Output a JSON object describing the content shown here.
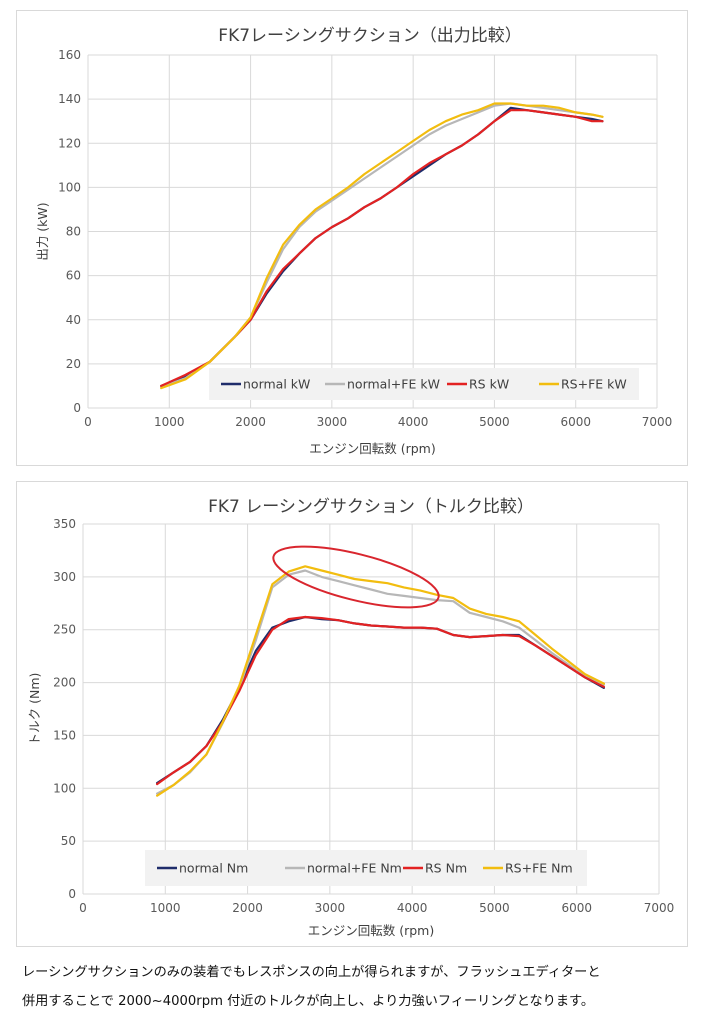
{
  "chart_data": [
    {
      "type": "line",
      "title": "FK7レーシングサクション（出力比較）",
      "xlabel": "エンジン回転数 (rpm)",
      "ylabel": "出力 (kW)",
      "xlim": [
        0,
        7000
      ],
      "ylim": [
        0,
        160
      ],
      "xticks": [
        0,
        1000,
        2000,
        3000,
        4000,
        5000,
        6000,
        7000
      ],
      "yticks": [
        0,
        20,
        40,
        60,
        80,
        100,
        120,
        140,
        160
      ],
      "grid": true,
      "legend_position": "bottom-right",
      "series": [
        {
          "name": "normal kW",
          "color": "#1f2d6b",
          "x": [
            900,
            1200,
            1500,
            1800,
            2000,
            2200,
            2400,
            2600,
            2800,
            3000,
            3200,
            3400,
            3600,
            3800,
            4000,
            4200,
            4400,
            4600,
            4800,
            5000,
            5200,
            5400,
            5600,
            5800,
            6000,
            6200,
            6330
          ],
          "y": [
            10,
            14,
            21,
            32,
            40,
            52,
            62,
            70,
            77,
            82,
            86,
            91,
            95,
            100,
            105,
            110,
            115,
            119,
            124,
            130,
            136,
            135,
            134,
            133,
            132,
            131,
            130
          ]
        },
        {
          "name": "normal+FE kW",
          "color": "#b7b7b7",
          "x": [
            900,
            1200,
            1500,
            1800,
            2000,
            2200,
            2400,
            2600,
            2800,
            3000,
            3200,
            3400,
            3600,
            3800,
            4000,
            4200,
            4400,
            4600,
            4800,
            5000,
            5200,
            5400,
            5600,
            5800,
            6000,
            6200,
            6330
          ],
          "y": [
            9.5,
            13.5,
            21,
            32,
            41,
            57,
            72,
            82,
            89,
            94,
            99,
            104,
            109,
            114,
            119,
            124,
            128,
            131,
            134,
            137,
            138,
            137,
            136,
            135,
            134,
            133,
            132
          ]
        },
        {
          "name": "RS kW",
          "color": "#e32222",
          "x": [
            900,
            1200,
            1500,
            1800,
            2000,
            2200,
            2400,
            2600,
            2800,
            3000,
            3200,
            3400,
            3600,
            3800,
            4000,
            4200,
            4400,
            4600,
            4800,
            5000,
            5200,
            5400,
            5600,
            5800,
            6000,
            6200,
            6330
          ],
          "y": [
            10,
            15,
            21,
            32,
            40,
            53,
            63,
            70,
            77,
            82,
            86,
            91,
            95,
            100,
            106,
            111,
            115,
            119,
            124,
            130,
            135,
            135,
            134,
            133,
            132,
            130,
            130
          ]
        },
        {
          "name": "RS+FE kW",
          "color": "#f2bd0f",
          "x": [
            900,
            1200,
            1500,
            1800,
            2000,
            2200,
            2400,
            2600,
            2800,
            3000,
            3200,
            3400,
            3600,
            3800,
            4000,
            4200,
            4400,
            4600,
            4800,
            5000,
            5200,
            5400,
            5600,
            5800,
            6000,
            6200,
            6330
          ],
          "y": [
            9,
            13,
            21,
            32,
            41,
            59,
            74,
            83,
            90,
            95,
            100,
            106,
            111,
            116,
            121,
            126,
            130,
            133,
            135,
            138,
            138,
            137,
            137,
            136,
            134,
            133,
            132
          ]
        }
      ]
    },
    {
      "type": "line",
      "title": "FK7 レーシングサクション（トルク比較）",
      "xlabel": "エンジン回転数 (rpm)",
      "ylabel": "トルク (Nm)",
      "xlim": [
        0,
        7000
      ],
      "ylim": [
        0,
        350
      ],
      "xticks": [
        0,
        1000,
        2000,
        3000,
        4000,
        5000,
        6000,
        7000
      ],
      "yticks": [
        0,
        50,
        100,
        150,
        200,
        250,
        300,
        350
      ],
      "grid": true,
      "legend_position": "bottom",
      "annotation": "ellipse highlighting 2000~4000rpm",
      "series": [
        {
          "name": "normal Nm",
          "color": "#1f2d6b",
          "x": [
            900,
            1100,
            1300,
            1500,
            1700,
            1900,
            2100,
            2300,
            2500,
            2700,
            2900,
            3100,
            3300,
            3500,
            3700,
            3900,
            4100,
            4300,
            4500,
            4700,
            4900,
            5100,
            5300,
            5500,
            5700,
            5900,
            6100,
            6330
          ],
          "y": [
            105,
            115,
            125,
            140,
            165,
            195,
            230,
            252,
            258,
            262,
            260,
            259,
            256,
            254,
            253,
            252,
            252,
            251,
            245,
            243,
            244,
            245,
            245,
            235,
            225,
            215,
            205,
            195
          ]
        },
        {
          "name": "normal+FE Nm",
          "color": "#b7b7b7",
          "x": [
            900,
            1100,
            1300,
            1500,
            1700,
            1900,
            2100,
            2300,
            2500,
            2700,
            2900,
            3100,
            3300,
            3500,
            3700,
            3900,
            4100,
            4300,
            4500,
            4700,
            4900,
            5100,
            5300,
            5500,
            5700,
            5900,
            6100,
            6330
          ],
          "y": [
            95,
            103,
            115,
            132,
            162,
            195,
            240,
            290,
            302,
            306,
            300,
            296,
            292,
            288,
            284,
            282,
            280,
            278,
            277,
            266,
            262,
            258,
            252,
            240,
            228,
            217,
            206,
            198
          ]
        },
        {
          "name": "RS Nm",
          "color": "#e32222",
          "x": [
            900,
            1100,
            1300,
            1500,
            1700,
            1900,
            2100,
            2300,
            2500,
            2700,
            2900,
            3100,
            3300,
            3500,
            3700,
            3900,
            4100,
            4300,
            4500,
            4700,
            4900,
            5100,
            5300,
            5500,
            5700,
            5900,
            6100,
            6330
          ],
          "y": [
            104,
            115,
            125,
            140,
            163,
            192,
            226,
            250,
            260,
            262,
            261,
            259,
            256,
            254,
            253,
            252,
            252,
            251,
            245,
            243,
            244,
            245,
            244,
            235,
            225,
            215,
            205,
            196
          ]
        },
        {
          "name": "RS+FE Nm",
          "color": "#f2bd0f",
          "x": [
            900,
            1100,
            1300,
            1500,
            1700,
            1900,
            2100,
            2300,
            2500,
            2700,
            2900,
            3100,
            3300,
            3500,
            3700,
            3900,
            4100,
            4300,
            4500,
            4700,
            4900,
            5100,
            5300,
            5500,
            5700,
            5900,
            6100,
            6330
          ],
          "y": [
            93,
            103,
            116,
            132,
            163,
            197,
            245,
            293,
            305,
            310,
            306,
            302,
            298,
            296,
            294,
            290,
            287,
            283,
            280,
            270,
            265,
            262,
            258,
            245,
            232,
            220,
            208,
            199
          ]
        }
      ]
    }
  ],
  "caption": {
    "line1": "レーシングサクションのみの装着でもレスポンスの向上が得られますが、フラッシュエディターと",
    "line2": "併用することで 2000~4000rpm 付近のトルクが向上し、より力強いフィーリングとなります。"
  }
}
